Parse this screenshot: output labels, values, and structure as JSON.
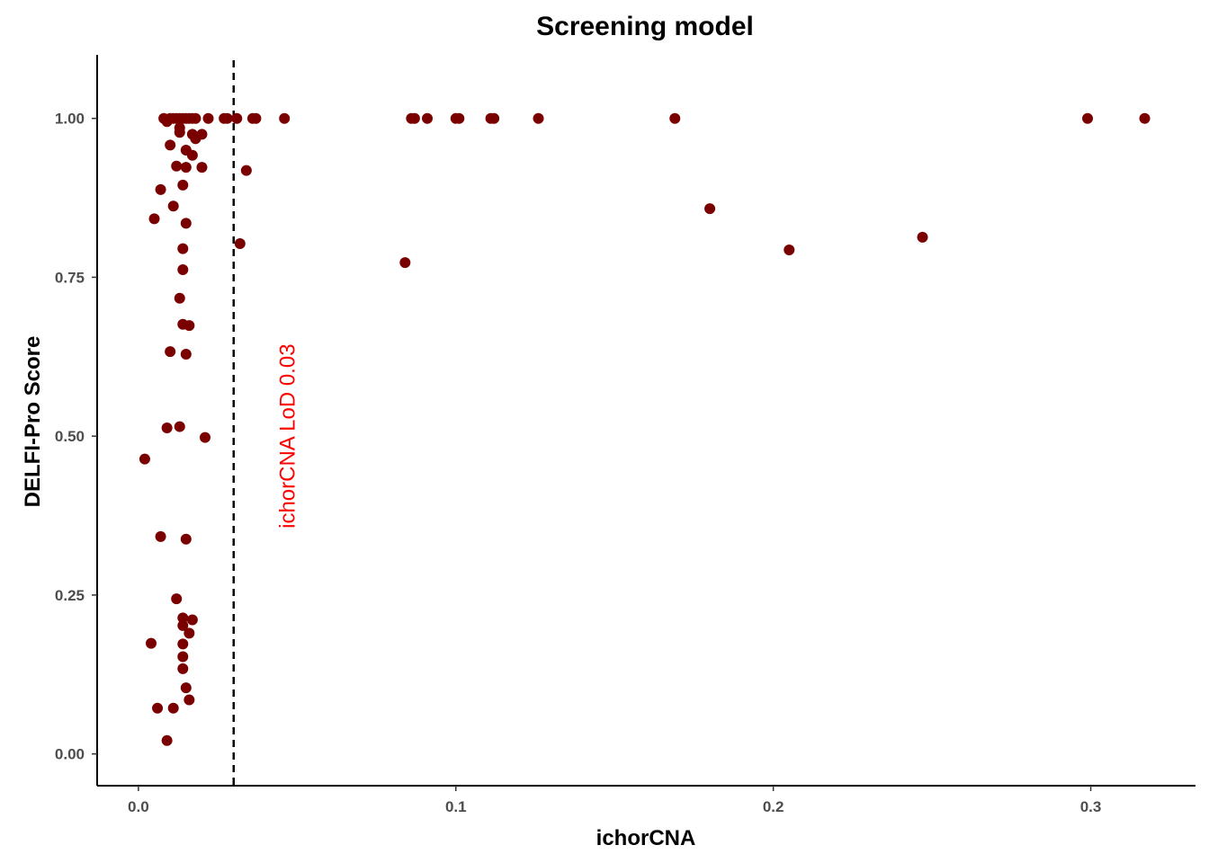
{
  "chart_data": {
    "type": "scatter",
    "title": "Screening model",
    "xlabel": "ichorCNA",
    "ylabel": "DELFI-Pro Score",
    "xlim": [
      -0.013,
      0.333
    ],
    "ylim": [
      -0.05,
      1.1
    ],
    "x_ticks": [
      0.0,
      0.1,
      0.2,
      0.3
    ],
    "x_tick_labels": [
      "0.0",
      "0.1",
      "0.2",
      "0.3"
    ],
    "y_ticks": [
      0.0,
      0.25,
      0.5,
      0.75,
      1.0
    ],
    "y_tick_labels": [
      "0.00",
      "0.25",
      "0.50",
      "0.75",
      "1.00"
    ],
    "grid": false,
    "point_color": "#7a0000",
    "reference_line": {
      "x": 0.03,
      "style": "dashed",
      "color": "#000000"
    },
    "annotation": {
      "text": "ichorCNA LoD 0.03",
      "x": 0.047,
      "y": 0.5,
      "rotation": -90,
      "color": "#ff0000"
    },
    "series": [
      {
        "points": [
          [
            0.008,
            1.0
          ],
          [
            0.009,
            0.995
          ],
          [
            0.01,
            1.0
          ],
          [
            0.011,
            1.0
          ],
          [
            0.012,
            1.0
          ],
          [
            0.013,
            1.0
          ],
          [
            0.014,
            1.0
          ],
          [
            0.015,
            1.0
          ],
          [
            0.016,
            1.0
          ],
          [
            0.017,
            1.0
          ],
          [
            0.018,
            1.0
          ],
          [
            0.022,
            1.0
          ],
          [
            0.027,
            1.0
          ],
          [
            0.028,
            1.0
          ],
          [
            0.031,
            1.0
          ],
          [
            0.036,
            1.0
          ],
          [
            0.037,
            1.0
          ],
          [
            0.046,
            1.0
          ],
          [
            0.086,
            1.0
          ],
          [
            0.087,
            1.0
          ],
          [
            0.091,
            1.0
          ],
          [
            0.1,
            1.0
          ],
          [
            0.101,
            1.0
          ],
          [
            0.111,
            1.0
          ],
          [
            0.112,
            1.0
          ],
          [
            0.126,
            1.0
          ],
          [
            0.169,
            1.0
          ],
          [
            0.299,
            1.0
          ],
          [
            0.317,
            1.0
          ],
          [
            0.013,
            0.985
          ],
          [
            0.013,
            0.978
          ],
          [
            0.017,
            0.975
          ],
          [
            0.02,
            0.975
          ],
          [
            0.018,
            0.968
          ],
          [
            0.01,
            0.958
          ],
          [
            0.015,
            0.95
          ],
          [
            0.017,
            0.942
          ],
          [
            0.012,
            0.925
          ],
          [
            0.015,
            0.923
          ],
          [
            0.02,
            0.923
          ],
          [
            0.034,
            0.918
          ],
          [
            0.014,
            0.895
          ],
          [
            0.007,
            0.888
          ],
          [
            0.011,
            0.862
          ],
          [
            0.005,
            0.842
          ],
          [
            0.015,
            0.835
          ],
          [
            0.18,
            0.858
          ],
          [
            0.032,
            0.803
          ],
          [
            0.014,
            0.795
          ],
          [
            0.205,
            0.793
          ],
          [
            0.247,
            0.813
          ],
          [
            0.084,
            0.773
          ],
          [
            0.014,
            0.762
          ],
          [
            0.013,
            0.717
          ],
          [
            0.014,
            0.676
          ],
          [
            0.016,
            0.674
          ],
          [
            0.01,
            0.633
          ],
          [
            0.015,
            0.629
          ],
          [
            0.009,
            0.513
          ],
          [
            0.013,
            0.515
          ],
          [
            0.021,
            0.498
          ],
          [
            0.002,
            0.464
          ],
          [
            0.007,
            0.342
          ],
          [
            0.015,
            0.338
          ],
          [
            0.012,
            0.244
          ],
          [
            0.014,
            0.214
          ],
          [
            0.017,
            0.211
          ],
          [
            0.014,
            0.202
          ],
          [
            0.016,
            0.19
          ],
          [
            0.004,
            0.174
          ],
          [
            0.014,
            0.173
          ],
          [
            0.014,
            0.153
          ],
          [
            0.014,
            0.134
          ],
          [
            0.015,
            0.104
          ],
          [
            0.016,
            0.085
          ],
          [
            0.006,
            0.072
          ],
          [
            0.011,
            0.072
          ],
          [
            0.009,
            0.021
          ]
        ]
      }
    ]
  }
}
